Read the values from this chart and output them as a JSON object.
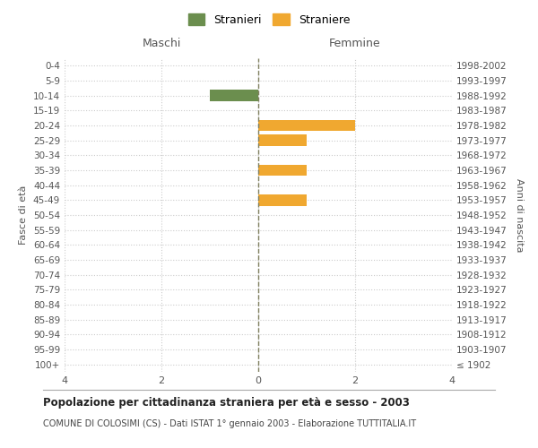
{
  "age_groups": [
    "100+",
    "95-99",
    "90-94",
    "85-89",
    "80-84",
    "75-79",
    "70-74",
    "65-69",
    "60-64",
    "55-59",
    "50-54",
    "45-49",
    "40-44",
    "35-39",
    "30-34",
    "25-29",
    "20-24",
    "15-19",
    "10-14",
    "5-9",
    "0-4"
  ],
  "birth_years": [
    "≤ 1902",
    "1903-1907",
    "1908-1912",
    "1913-1917",
    "1918-1922",
    "1923-1927",
    "1928-1932",
    "1933-1937",
    "1938-1942",
    "1943-1947",
    "1948-1952",
    "1953-1957",
    "1958-1962",
    "1963-1967",
    "1968-1972",
    "1973-1977",
    "1978-1982",
    "1983-1987",
    "1988-1992",
    "1993-1997",
    "1998-2002"
  ],
  "males": [
    0,
    0,
    0,
    0,
    0,
    0,
    0,
    0,
    0,
    0,
    0,
    0,
    0,
    0,
    0,
    0,
    0,
    0,
    1,
    0,
    0
  ],
  "females": [
    0,
    0,
    0,
    0,
    0,
    0,
    0,
    0,
    0,
    0,
    0,
    1,
    0,
    1,
    0,
    1,
    2,
    0,
    0,
    0,
    0
  ],
  "male_color": "#6b8e4e",
  "female_color": "#f0a830",
  "title": "Popolazione per cittadinanza straniera per età e sesso - 2003",
  "subtitle": "COMUNE DI COLOSIMI (CS) - Dati ISTAT 1° gennaio 2003 - Elaborazione TUTTITALIA.IT",
  "xlabel_left": "Maschi",
  "xlabel_right": "Femmine",
  "ylabel_left": "Fasce di età",
  "ylabel_right": "Anni di nascita",
  "legend_male": "Stranieri",
  "legend_female": "Straniere",
  "xlim": 4,
  "bg_color": "#ffffff",
  "grid_color": "#cccccc",
  "zero_line_color": "#808060"
}
